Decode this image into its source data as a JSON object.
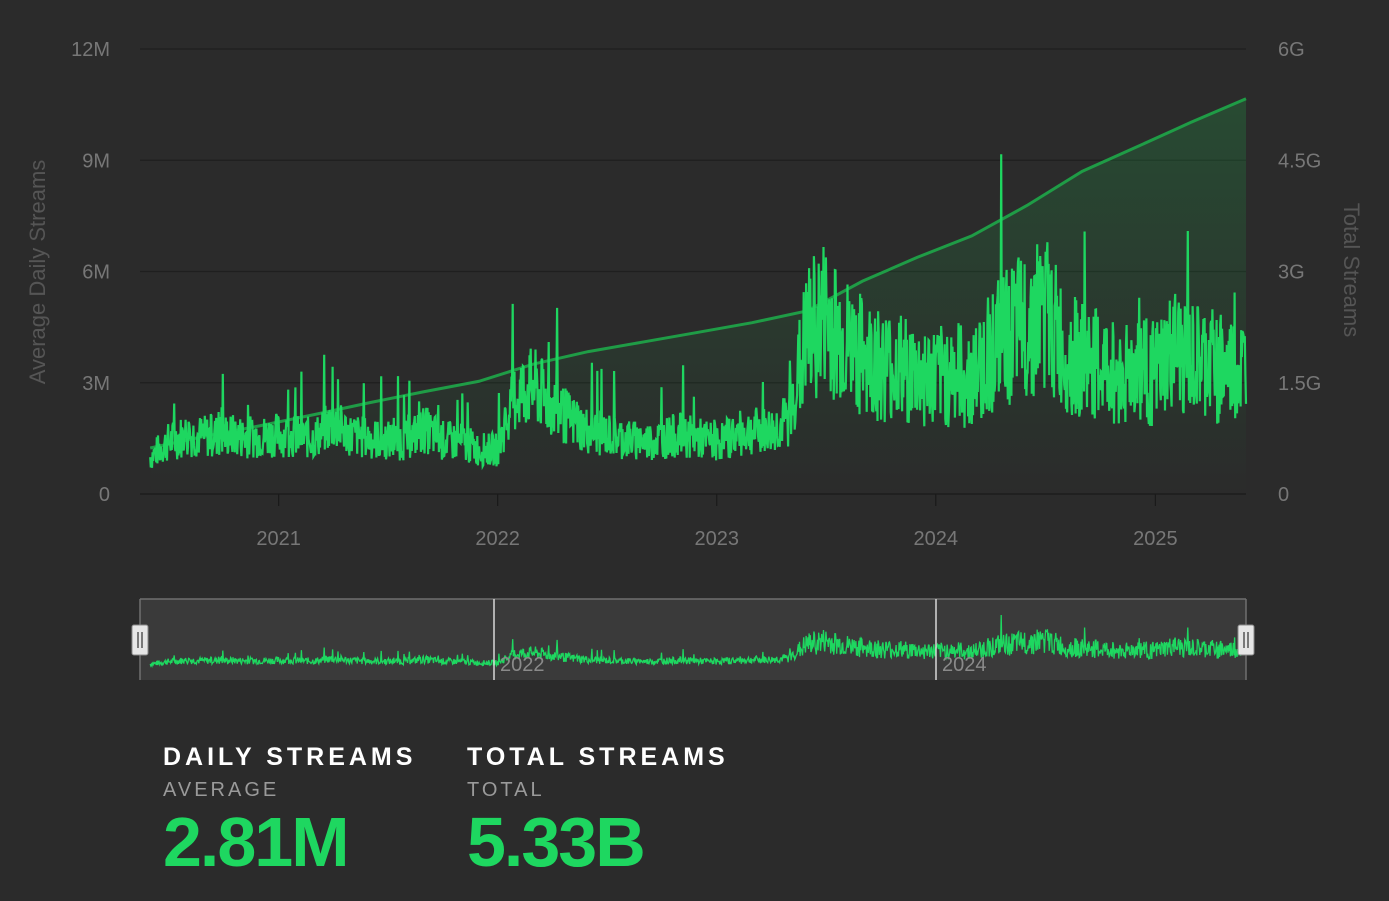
{
  "chart_data": {
    "type": "line",
    "x_axis": {
      "type": "datetime",
      "range": [
        "2020-05-15",
        "2025-06-01"
      ],
      "tick_labels": [
        "2021",
        "2022",
        "2023",
        "2024",
        "2025"
      ]
    },
    "y_axis_left": {
      "label": "Average Daily Streams",
      "range": [
        0,
        12000000
      ],
      "tick_labels": [
        "0",
        "3M",
        "6M",
        "9M",
        "12M"
      ]
    },
    "y_axis_right": {
      "label": "Total Streams",
      "range": [
        0,
        6000000000
      ],
      "tick_labels": [
        "0",
        "1.5G",
        "3G",
        "4.5G",
        "6G"
      ]
    },
    "grid": true,
    "series": [
      {
        "axis": "left",
        "style": "line",
        "x": [
          "2020-06-01",
          "2020-07-01",
          "2020-08-01",
          "2020-09-01",
          "2020-10-01",
          "2020-11-01",
          "2020-12-01",
          "2021-01-01",
          "2021-02-01",
          "2021-03-01",
          "2021-04-01",
          "2021-05-01",
          "2021-06-01",
          "2021-07-01",
          "2021-08-01",
          "2021-09-01",
          "2021-10-01",
          "2021-11-01",
          "2021-12-01",
          "2022-01-01",
          "2022-02-01",
          "2022-03-01",
          "2022-04-01",
          "2022-05-01",
          "2022-06-01",
          "2022-07-01",
          "2022-08-01",
          "2022-09-01",
          "2022-10-01",
          "2022-11-01",
          "2022-12-01",
          "2023-01-01",
          "2023-02-01",
          "2023-03-01",
          "2023-04-01",
          "2023-05-01",
          "2023-06-01",
          "2023-07-01",
          "2023-08-01",
          "2023-09-01",
          "2023-10-01",
          "2023-11-01",
          "2023-12-01",
          "2024-01-01",
          "2024-02-01",
          "2024-03-01",
          "2024-04-01",
          "2024-05-01",
          "2024-06-01",
          "2024-07-01",
          "2024-08-01",
          "2024-09-01",
          "2024-10-01",
          "2024-11-01",
          "2024-12-01",
          "2025-01-01",
          "2025-02-01",
          "2025-03-01",
          "2025-04-01",
          "2025-05-01",
          "2025-06-01"
        ],
        "values": [
          1000000,
          1400000,
          1600000,
          1550000,
          1600000,
          1550000,
          1550000,
          1600000,
          1550000,
          1500000,
          1900000,
          1600000,
          1500000,
          1450000,
          1450000,
          1750000,
          1450000,
          1400000,
          1200000,
          1200000,
          2700000,
          2900000,
          2400000,
          2000000,
          1700000,
          1600000,
          1500000,
          1400000,
          1500000,
          1600000,
          1500000,
          1400000,
          1600000,
          1700000,
          1700000,
          2000000,
          4300000,
          4800000,
          4100000,
          3700000,
          3500000,
          3400000,
          3200000,
          3100000,
          3300000,
          3000000,
          3900000,
          4200000,
          4600000,
          5000000,
          3800000,
          3600000,
          3400000,
          3200000,
          3400000,
          3200000,
          3800000,
          3500000,
          3500000,
          3300000,
          3300000
        ]
      },
      {
        "axis": "right",
        "style": "area",
        "x": [
          "2020-06-01",
          "2020-09-01",
          "2020-12-01",
          "2021-03-01",
          "2021-06-01",
          "2021-09-01",
          "2021-12-01",
          "2022-03-01",
          "2022-06-01",
          "2022-09-01",
          "2022-12-01",
          "2023-03-01",
          "2023-06-01",
          "2023-09-01",
          "2023-12-01",
          "2024-03-01",
          "2024-06-01",
          "2024-09-01",
          "2024-12-01",
          "2025-03-01",
          "2025-06-01"
        ],
        "values": [
          620000000,
          780000000,
          920000000,
          1070000000,
          1230000000,
          1380000000,
          1520000000,
          1750000000,
          1920000000,
          2050000000,
          2180000000,
          2310000000,
          2470000000,
          2870000000,
          3190000000,
          3480000000,
          3890000000,
          4350000000,
          4680000000,
          5010000000,
          5330000000
        ]
      }
    ],
    "navigator": {
      "labels": [
        "2022",
        "2024"
      ]
    }
  },
  "stats": [
    {
      "title": "DAILY STREAMS",
      "subtitle": "AVERAGE",
      "value": "2.81M"
    },
    {
      "title": "TOTAL STREAMS",
      "subtitle": "TOTAL",
      "value": "5.33B"
    }
  ],
  "colors": {
    "background": "#2b2b2b",
    "accent": "#1ed760",
    "line_dark": "#1f9c46",
    "grid": "#1f1f1f"
  }
}
